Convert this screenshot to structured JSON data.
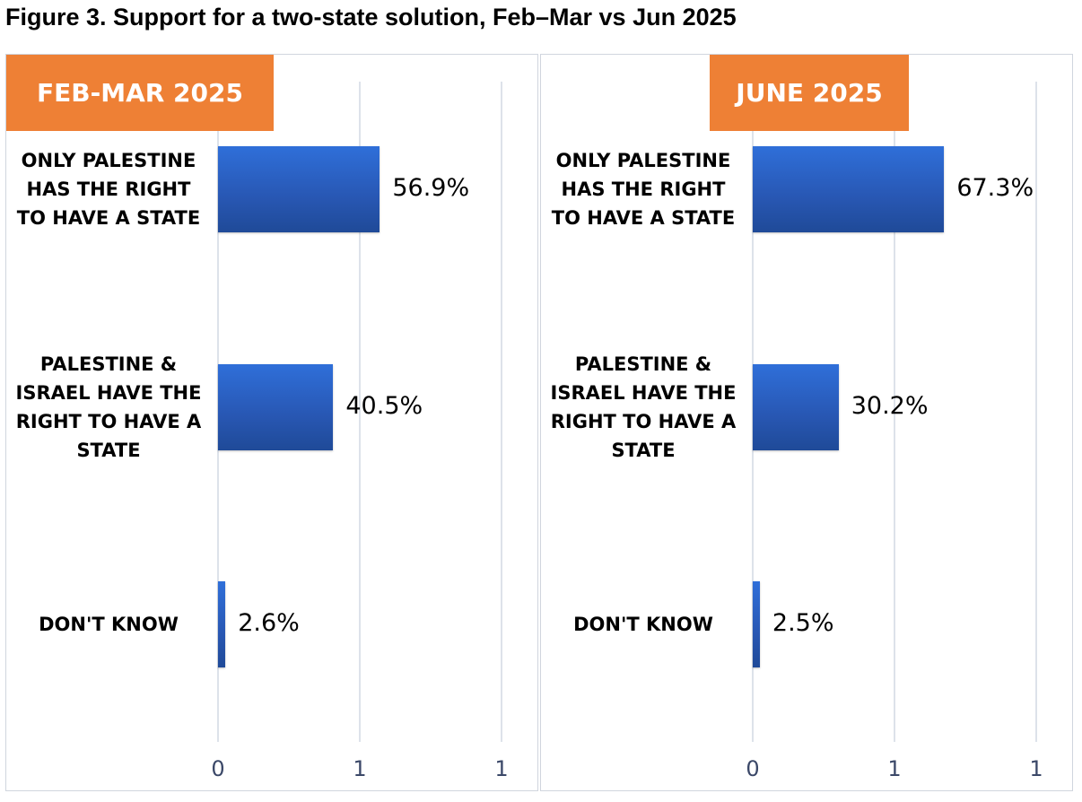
{
  "title": "Figure 3. Support for a two-state solution, Feb–Mar vs Jun 2025",
  "chart_data": [
    {
      "type": "bar",
      "orientation": "horizontal",
      "title": "FEB-MAR 2025",
      "categories": [
        "ONLY PALESTINE\nHAS THE RIGHT\nTO HAVE A STATE",
        "PALESTINE &\nISRAEL HAVE THE\nRIGHT TO HAVE A\nSTATE",
        "DON'T KNOW"
      ],
      "values": [
        56.9,
        40.5,
        2.6
      ],
      "value_labels": [
        "56.9%",
        "40.5%",
        "2.6%"
      ],
      "x_ticks": [
        "0",
        "1",
        "1"
      ],
      "grid": true,
      "header_color": "#ee8035",
      "bar_color": "#2857b3"
    },
    {
      "type": "bar",
      "orientation": "horizontal",
      "title": "JUNE 2025",
      "categories": [
        "ONLY PALESTINE\nHAS THE RIGHT\nTO HAVE A STATE",
        "PALESTINE &\nISRAEL HAVE THE\nRIGHT TO HAVE A\nSTATE",
        "DON'T KNOW"
      ],
      "values": [
        67.3,
        30.2,
        2.5
      ],
      "value_labels": [
        "67.3%",
        "30.2%",
        "2.5%"
      ],
      "x_ticks": [
        "0",
        "1",
        "1"
      ],
      "grid": true,
      "header_color": "#ee8035",
      "bar_color": "#2857b3"
    }
  ]
}
